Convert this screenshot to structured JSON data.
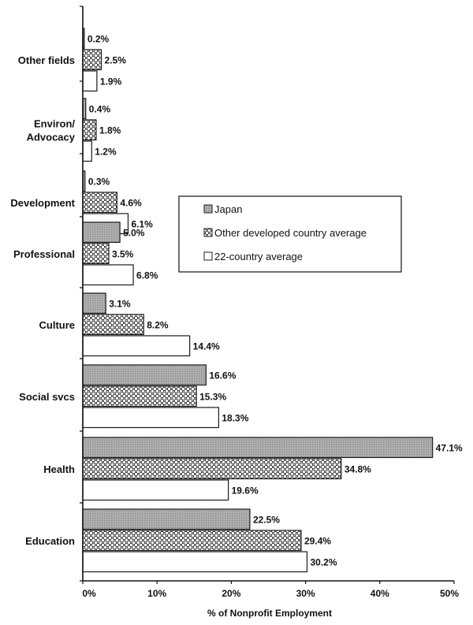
{
  "chart_data": {
    "type": "bar",
    "orientation": "horizontal",
    "categories": [
      "Other fields",
      "Environ/\nAdvocacy",
      "Development",
      "Professional",
      "Culture",
      "Social svcs",
      "Health",
      "Education"
    ],
    "series": [
      {
        "name": "Japan",
        "values": [
          0.2,
          0.4,
          0.3,
          5.0,
          3.1,
          16.6,
          47.1,
          22.5
        ]
      },
      {
        "name": "Other developed country average",
        "values": [
          2.5,
          1.8,
          4.6,
          3.5,
          8.2,
          15.3,
          34.8,
          29.4
        ]
      },
      {
        "name": "22-country average",
        "values": [
          1.9,
          1.2,
          6.1,
          6.8,
          14.4,
          18.3,
          19.6,
          30.2
        ]
      }
    ],
    "value_labels": [
      [
        "0.2%",
        "0.4%",
        "0.3%",
        "5.0%",
        "3.1%",
        "16.6%",
        "47.1%",
        "22.5%"
      ],
      [
        "2.5%",
        "1.8%",
        "4.6%",
        "3.5%",
        "8.2%",
        "15.3%",
        "34.8%",
        "29.4%"
      ],
      [
        "1.9%",
        "1.2%",
        "6.1%",
        "6.8%",
        "14.4%",
        "18.3%",
        "19.6%",
        "30.2%"
      ]
    ],
    "x_ticks": [
      0,
      10,
      20,
      30,
      40,
      50
    ],
    "x_tick_labels": [
      "0%",
      "10%",
      "20%",
      "30%",
      "40%",
      "50%"
    ],
    "xlim": [
      0,
      50
    ],
    "xlabel": "% of Nonprofit Employment",
    "ylabel": "",
    "title": "",
    "grid": false,
    "legend_position": "center-right",
    "series_styles": [
      "gray-fill",
      "checker-pattern",
      "white-fill"
    ]
  }
}
